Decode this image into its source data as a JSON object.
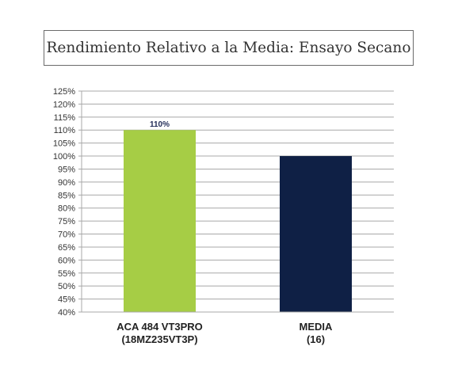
{
  "chart_data": {
    "type": "bar",
    "title": "Rendimiento Relativo a la Media: Ensayo Secano",
    "categories": [
      [
        "ACA 484 VT3PRO",
        "(18MZ235VT3P)"
      ],
      [
        "MEDIA",
        "(16)"
      ]
    ],
    "values": [
      110,
      100
    ],
    "data_labels": [
      "110%",
      ""
    ],
    "colors": [
      "#a6cd45",
      "#0f2045"
    ],
    "yticks": [
      "40%",
      "45%",
      "50%",
      "55%",
      "60%",
      "65%",
      "70%",
      "75%",
      "80%",
      "85%",
      "90%",
      "95%",
      "100%",
      "105%",
      "110%",
      "115%",
      "120%",
      "125%"
    ],
    "ylim": [
      40,
      125
    ],
    "grid": true,
    "legend": "none"
  }
}
